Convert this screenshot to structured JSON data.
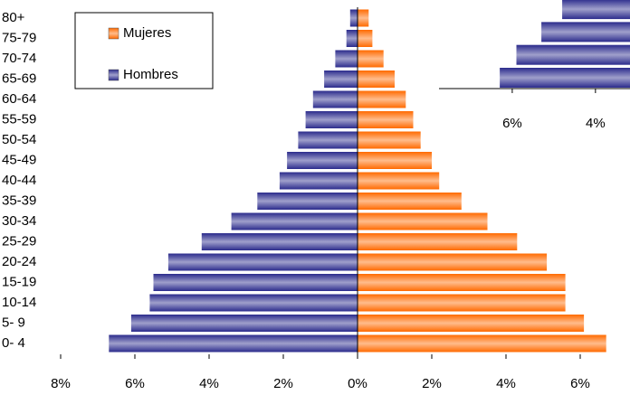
{
  "chart_data": [
    {
      "type": "pyramid",
      "categories": [
        "0- 4",
        "5- 9",
        "10-14",
        "15-19",
        "20-24",
        "25-29",
        "30-34",
        "35-39",
        "40-44",
        "45-49",
        "50-54",
        "55-59",
        "60-64",
        "65-69",
        "70-74",
        "75-79",
        "80+"
      ],
      "series": [
        {
          "name": "Mujeres",
          "color": "#ff6a00",
          "values": [
            6.7,
            6.1,
            5.6,
            5.6,
            5.1,
            4.3,
            3.5,
            2.8,
            2.2,
            2.0,
            1.7,
            1.5,
            1.3,
            1.0,
            0.7,
            0.4,
            0.3
          ]
        },
        {
          "name": "Hombres",
          "color": "#2b2b8c",
          "values": [
            -6.7,
            -6.1,
            -5.6,
            -5.5,
            -5.1,
            -4.2,
            -3.4,
            -2.7,
            -2.1,
            -1.9,
            -1.6,
            -1.4,
            -1.2,
            -0.9,
            -0.6,
            -0.3,
            -0.2
          ]
        }
      ],
      "xlim": [
        -8,
        7.3
      ],
      "xticks": [
        {
          "value": -8,
          "label": "8%"
        },
        {
          "value": -6,
          "label": "6%"
        },
        {
          "value": -4,
          "label": "4%"
        },
        {
          "value": -2,
          "label": "2%"
        },
        {
          "value": 0,
          "label": "0%"
        },
        {
          "value": 2,
          "label": "2%"
        },
        {
          "value": 4,
          "label": "4%"
        },
        {
          "value": 6,
          "label": "6%"
        }
      ],
      "legend": "top-left"
    },
    {
      "type": "inset-bars",
      "categories": [
        null,
        null,
        null,
        null
      ],
      "series": [
        {
          "color": "#2b2b8c",
          "values": [
            -6.3,
            -5.9,
            -5.3,
            -4.8
          ]
        }
      ],
      "xlim": [
        -7.76,
        -3.17
      ],
      "xticks": [
        {
          "value": -6,
          "label": "6%"
        },
        {
          "value": -4,
          "label": "4%"
        }
      ]
    }
  ]
}
